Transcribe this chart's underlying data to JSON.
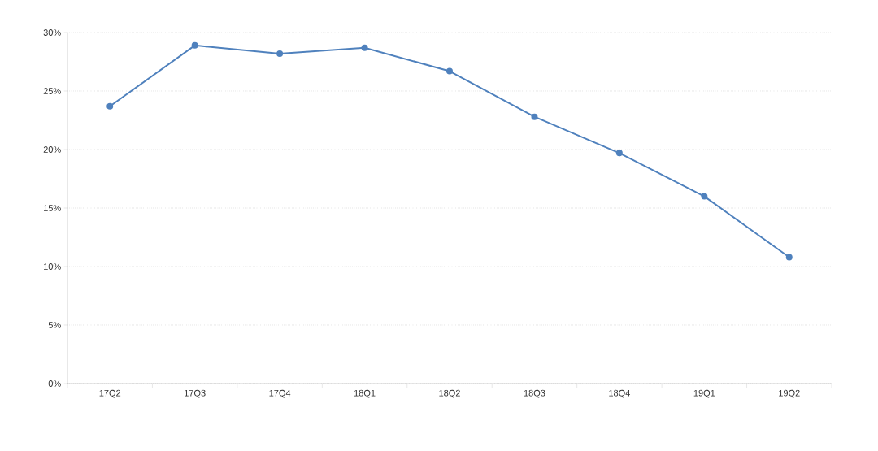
{
  "chart_data": {
    "type": "line",
    "categories": [
      "17Q2",
      "17Q3",
      "17Q4",
      "18Q1",
      "18Q2",
      "18Q3",
      "18Q4",
      "19Q1",
      "19Q2"
    ],
    "series": [
      {
        "color": "#4f81bd",
        "values": [
          23.7,
          28.9,
          28.2,
          28.7,
          26.7,
          22.8,
          19.7,
          16.0,
          10.8
        ]
      }
    ],
    "ylim": [
      0,
      30
    ],
    "yticks": [
      {
        "value": 0,
        "label": "0%"
      },
      {
        "value": 5,
        "label": "5%"
      },
      {
        "value": 10,
        "label": "10%"
      },
      {
        "value": 15,
        "label": "15%"
      },
      {
        "value": 20,
        "label": "20%"
      },
      {
        "value": 25,
        "label": "25%"
      },
      {
        "value": 30,
        "label": "30%"
      }
    ],
    "grid": "y",
    "marker": "circle",
    "line_style": "solid"
  }
}
